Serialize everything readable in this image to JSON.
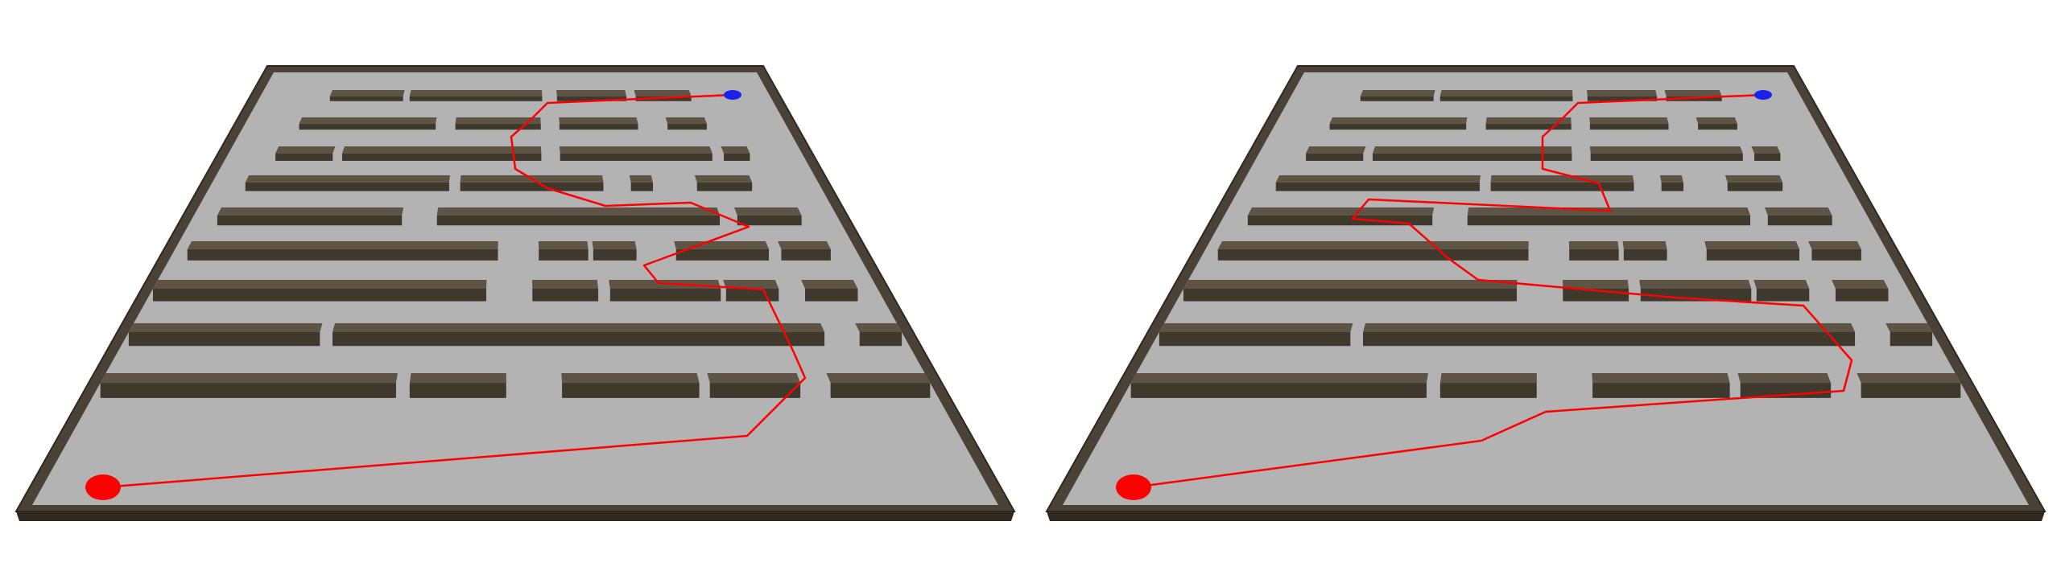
{
  "scene": {
    "panels": [
      {
        "id": "left",
        "start_marker": {
          "icon": "start-ellipse-red",
          "color": "#ff0000"
        },
        "goal_marker": {
          "icon": "goal-ellipse-blue",
          "color": "#1a22e6"
        },
        "path_color": "#ff0000"
      },
      {
        "id": "right",
        "start_marker": {
          "icon": "start-ellipse-red",
          "color": "#ff0000"
        },
        "goal_marker": {
          "icon": "goal-ellipse-blue",
          "color": "#1a22e6"
        },
        "path_color": "#ff0000"
      }
    ],
    "colors": {
      "floor": "#b3b3b3",
      "wall_top": "#5e5445",
      "wall_side": "#3f382d",
      "border": "#4a4236",
      "background": "#ffffff"
    }
  }
}
